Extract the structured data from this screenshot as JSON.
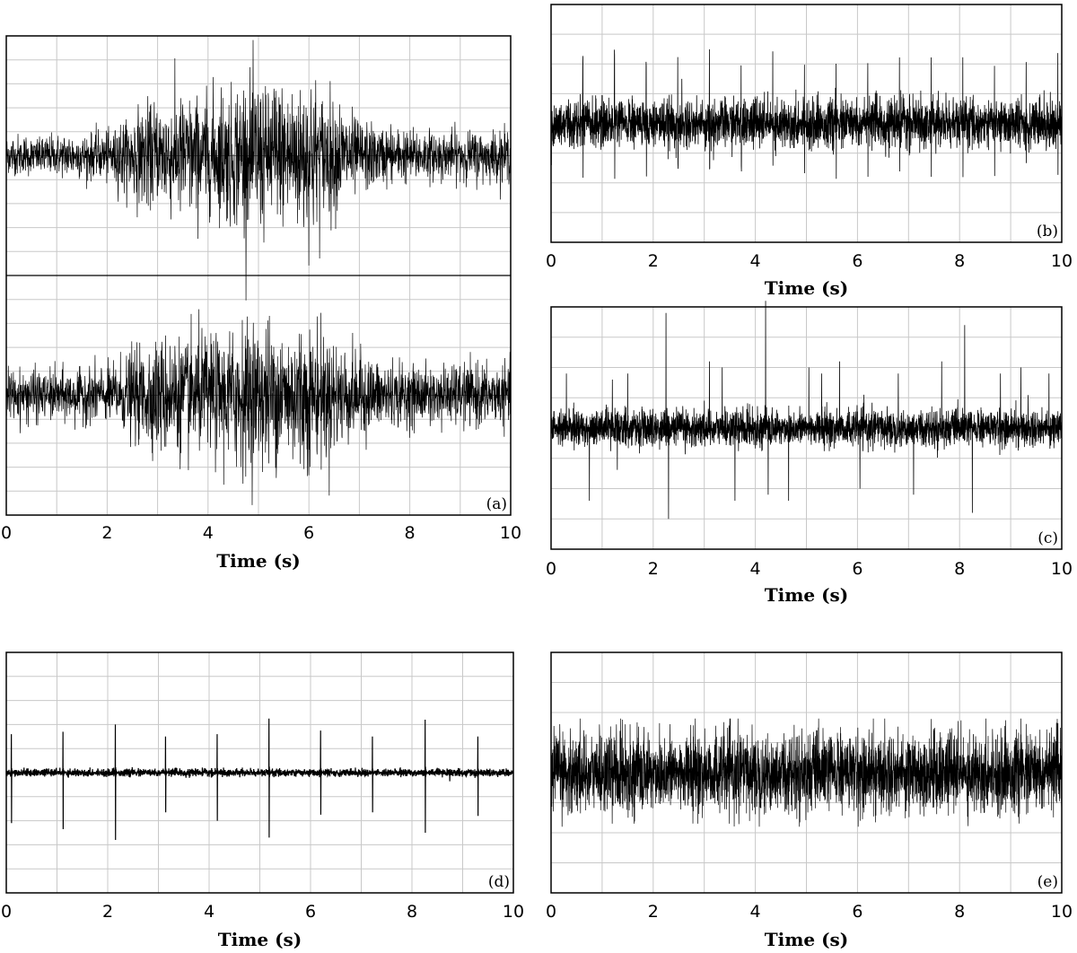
{
  "chart_data": [
    {
      "type": "line",
      "panel_label": "(a)",
      "xlabel": "Time (s)",
      "xlim": [
        0,
        10
      ],
      "xticks": [
        "0",
        "2",
        "4",
        "6",
        "8",
        "10"
      ],
      "grid": true,
      "subplots": [
        {
          "signal": "burst_noise",
          "envelope": {
            "t": [
              0,
              1,
              2,
              2.6,
              3,
              3.5,
              4,
              4.5,
              5,
              5.5,
              6,
              6.5,
              7,
              8,
              9,
              10
            ],
            "amplitude": [
              0.2,
              0.2,
              0.25,
              0.45,
              0.55,
              0.6,
              0.6,
              0.7,
              0.75,
              0.75,
              0.8,
              0.55,
              0.35,
              0.25,
              0.25,
              0.25
            ]
          }
        },
        {
          "signal": "burst_noise",
          "envelope": {
            "t": [
              0,
              1,
              2,
              2.6,
              3,
              3.5,
              4,
              4.5,
              5,
              5.5,
              6,
              6.5,
              7,
              8,
              9,
              10
            ],
            "amplitude": [
              0.25,
              0.25,
              0.3,
              0.45,
              0.55,
              0.6,
              0.6,
              0.7,
              0.7,
              0.7,
              0.75,
              0.55,
              0.4,
              0.3,
              0.3,
              0.3
            ]
          }
        }
      ]
    },
    {
      "type": "line",
      "panel_label": "(b)",
      "xlabel": "Time (s)",
      "xlim": [
        0,
        10
      ],
      "xticks": [
        "0",
        "2",
        "4",
        "6",
        "8",
        "10"
      ],
      "grid": true,
      "signal": "dense_noise_with_periodic_spikes",
      "noise_amplitude": 0.22,
      "spike_period_s": 0.62,
      "spike_amplitude": 0.55
    },
    {
      "type": "line",
      "panel_label": "(c)",
      "xlabel": "Time (s)",
      "xlabel_present": true,
      "xlim": [
        0,
        10
      ],
      "xticks": [
        "0",
        "2",
        "4",
        "6",
        "8",
        "10"
      ],
      "grid": true,
      "signal": "dense_noise_with_random_spikes",
      "noise_amplitude": 0.16,
      "spike_times_s": [
        0.3,
        0.75,
        1.2,
        1.5,
        2.25,
        2.3,
        3.1,
        3.35,
        3.6,
        4.2,
        4.25,
        4.65,
        5.05,
        5.3,
        5.65,
        6.05,
        6.8,
        7.1,
        7.65,
        8.1,
        8.25,
        8.8,
        9.2,
        9.75
      ],
      "spike_amplitudes": [
        0.45,
        -0.6,
        0.4,
        0.45,
        0.95,
        -0.75,
        0.55,
        0.5,
        -0.6,
        1.05,
        -0.55,
        -0.6,
        0.5,
        0.45,
        0.55,
        -0.5,
        0.45,
        -0.55,
        0.55,
        0.85,
        -0.7,
        0.45,
        0.5,
        0.45
      ]
    },
    {
      "type": "line",
      "panel_label": "(d)",
      "xlabel": "Time (s)",
      "xlim": [
        0,
        10
      ],
      "xticks": [
        "0",
        "2",
        "4",
        "6",
        "8",
        "10"
      ],
      "grid": true,
      "signal": "periodic_impulses",
      "impulse_times_s": [
        0.1,
        1.12,
        2.15,
        3.14,
        4.16,
        5.18,
        6.2,
        7.22,
        8.26,
        9.3
      ],
      "impulse_up": [
        0.32,
        0.34,
        0.4,
        0.3,
        0.32,
        0.45,
        0.35,
        0.3,
        0.44,
        0.3
      ],
      "impulse_down": [
        -0.42,
        -0.47,
        -0.56,
        -0.33,
        -0.4,
        -0.54,
        -0.35,
        -0.33,
        -0.5,
        -0.36
      ],
      "noise_amplitude": 0.015
    },
    {
      "type": "line",
      "panel_label": "(e)",
      "xlabel": "Time (s)",
      "xlim": [
        0,
        10
      ],
      "xticks": [
        "0",
        "2",
        "4",
        "6",
        "8",
        "10"
      ],
      "grid": true,
      "signal": "very_dense_noise",
      "noise_amplitude": 0.5
    }
  ]
}
